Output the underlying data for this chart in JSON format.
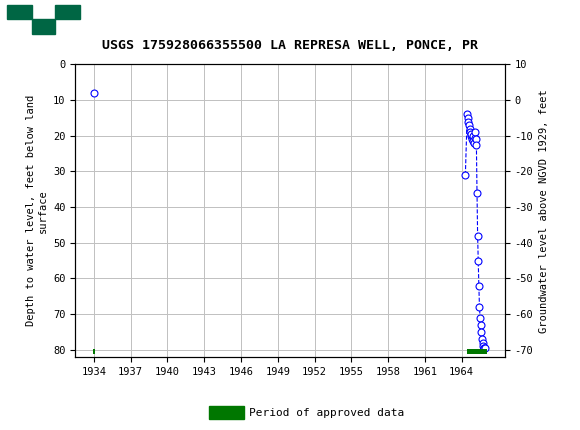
{
  "title": "USGS 175928066355500 LA REPRESA WELL, PONCE, PR",
  "header_color": "#006644",
  "left_ylabel": "Depth to water level, feet below land\nsurface",
  "right_ylabel": "Groundwater level above NGVD 1929, feet",
  "xlim": [
    1932.5,
    1967.5
  ],
  "ylim_left": [
    0,
    82
  ],
  "xticks": [
    1934,
    1937,
    1940,
    1943,
    1946,
    1949,
    1952,
    1955,
    1958,
    1961,
    1964
  ],
  "yticks_left": [
    0,
    10,
    20,
    30,
    40,
    50,
    60,
    70,
    80
  ],
  "yticks_right": [
    10,
    0,
    -10,
    -20,
    -30,
    -40,
    -50,
    -60
  ],
  "isolated_x": [
    1934.0
  ],
  "isolated_y": [
    8.0
  ],
  "cluster_x": [
    1964.3,
    1964.45,
    1964.5,
    1964.55,
    1964.6,
    1964.65,
    1964.7,
    1964.75,
    1964.8,
    1964.85,
    1964.9,
    1964.95,
    1965.0,
    1965.05,
    1965.1,
    1965.15,
    1965.2,
    1965.25,
    1965.3,
    1965.35,
    1965.4,
    1965.45,
    1965.5,
    1965.55,
    1965.6,
    1965.65,
    1965.7,
    1965.75,
    1965.8,
    1965.85,
    1965.9
  ],
  "cluster_y": [
    31.0,
    14.0,
    15.0,
    16.0,
    17.0,
    18.0,
    19.0,
    20.0,
    19.5,
    21.0,
    20.0,
    21.5,
    22.0,
    20.5,
    19.0,
    21.0,
    22.5,
    36.0,
    48.0,
    55.0,
    62.0,
    68.0,
    71.0,
    73.0,
    75.0,
    77.0,
    78.0,
    79.0,
    79.5,
    79.5,
    79.5
  ],
  "marker_color": "#0000ff",
  "marker_facecolor": "white",
  "marker_size": 5,
  "line_color": "#0000ff",
  "line_style": "--",
  "legend_color": "#007700",
  "approved_data_x1": 1933.9,
  "approved_data_x2": 1934.1,
  "approved_data_x3": 1964.4,
  "approved_data_x4": 1966.1,
  "background_color": "#ffffff",
  "grid_color": "#c0c0c0"
}
